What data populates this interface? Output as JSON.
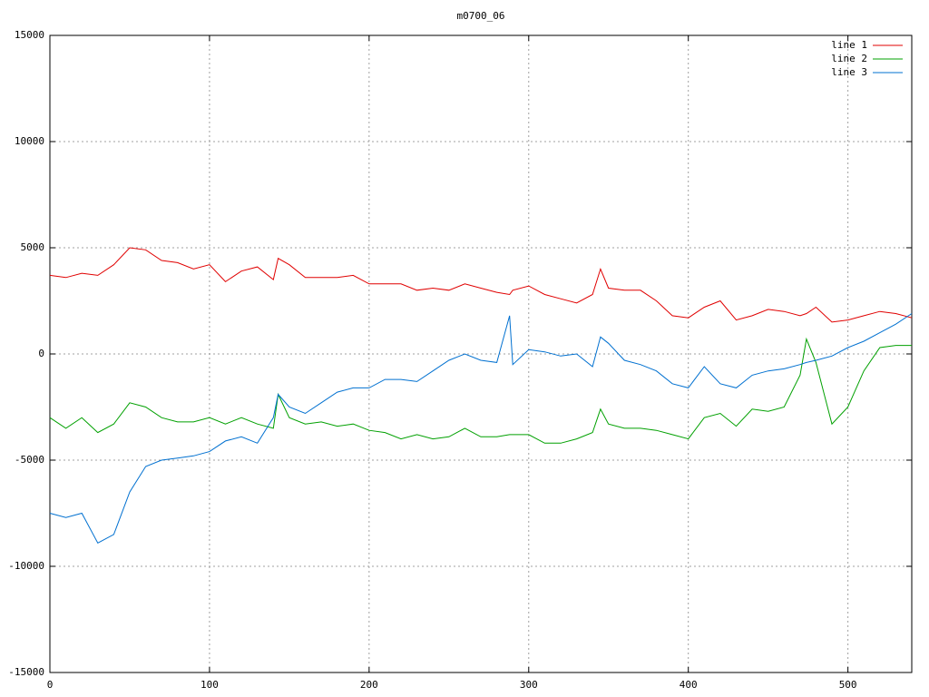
{
  "chart_data": {
    "type": "line",
    "title": "m0700_06",
    "x": [
      0,
      10,
      20,
      30,
      40,
      50,
      60,
      70,
      80,
      90,
      100,
      110,
      120,
      130,
      140,
      143,
      150,
      160,
      170,
      180,
      190,
      200,
      210,
      220,
      230,
      240,
      250,
      260,
      270,
      280,
      288,
      290,
      300,
      310,
      320,
      330,
      340,
      345,
      350,
      360,
      370,
      380,
      390,
      400,
      410,
      420,
      430,
      440,
      450,
      460,
      470,
      474,
      480,
      490,
      500,
      510,
      520,
      530,
      540
    ],
    "series": [
      {
        "name": "line 1",
        "color": "#e00000",
        "values": [
          3700,
          3600,
          3800,
          3700,
          4200,
          5000,
          4900,
          4400,
          4300,
          4000,
          4200,
          3400,
          3900,
          4100,
          3500,
          4500,
          4200,
          3600,
          3600,
          3600,
          3700,
          3300,
          3300,
          3300,
          3000,
          3100,
          3000,
          3300,
          3100,
          2900,
          2800,
          3000,
          3200,
          2800,
          2600,
          2400,
          2800,
          4000,
          3100,
          3000,
          3000,
          2500,
          1800,
          1700,
          2200,
          2500,
          1600,
          1800,
          2100,
          2000,
          1800,
          1900,
          2200,
          1500,
          1600,
          1800,
          2000,
          1900,
          1700
        ]
      },
      {
        "name": "line 2",
        "color": "#00a000",
        "values": [
          -3000,
          -3500,
          -3000,
          -3700,
          -3300,
          -2300,
          -2500,
          -3000,
          -3200,
          -3200,
          -3000,
          -3300,
          -3000,
          -3300,
          -3500,
          -1900,
          -3000,
          -3300,
          -3200,
          -3400,
          -3300,
          -3600,
          -3700,
          -4000,
          -3800,
          -4000,
          -3900,
          -3500,
          -3900,
          -3900,
          -3800,
          -3800,
          -3800,
          -4200,
          -4200,
          -4000,
          -3700,
          -2600,
          -3300,
          -3500,
          -3500,
          -3600,
          -3800,
          -4000,
          -3000,
          -2800,
          -3400,
          -2600,
          -2700,
          -2500,
          -1000,
          700,
          -400,
          -3300,
          -2500,
          -800,
          300,
          400,
          400
        ]
      },
      {
        "name": "line 3",
        "color": "#0070d0",
        "values": [
          -7500,
          -7700,
          -7500,
          -8900,
          -8500,
          -6500,
          -5300,
          -5000,
          -4900,
          -4800,
          -4600,
          -4100,
          -3900,
          -4200,
          -3000,
          -1900,
          -2500,
          -2800,
          -2300,
          -1800,
          -1600,
          -1600,
          -1200,
          -1200,
          -1300,
          -800,
          -300,
          0,
          -300,
          -400,
          1800,
          -500,
          200,
          100,
          -100,
          0,
          -600,
          800,
          500,
          -300,
          -500,
          -800,
          -1400,
          -1600,
          -600,
          -1400,
          -1600,
          -1000,
          -800,
          -700,
          -500,
          -400,
          -300,
          -100,
          300,
          600,
          1000,
          1400,
          1900
        ]
      }
    ],
    "xlim": [
      0,
      540
    ],
    "ylim": [
      -15000,
      15000
    ],
    "xticks": [
      0,
      100,
      200,
      300,
      400,
      500
    ],
    "yticks": [
      -15000,
      -10000,
      -5000,
      0,
      5000,
      10000,
      15000
    ],
    "grid": true,
    "legend": "top-right"
  }
}
